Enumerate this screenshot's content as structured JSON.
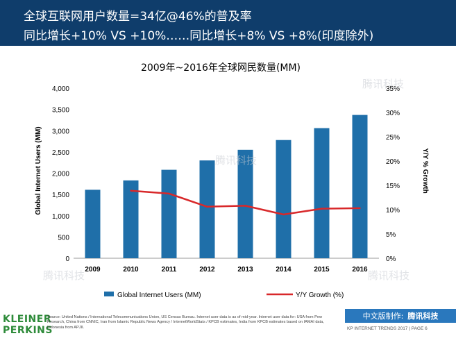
{
  "header": {
    "line1": "全球互联网用户数量=34亿@46%的普及率",
    "line2": "同比增长+10% VS +10%……同比增长+8% VS +8%(印度除外)"
  },
  "chart_data": {
    "type": "bar",
    "title": "2009年~2016年全球网民数量(MM)",
    "categories": [
      "2009",
      "2010",
      "2011",
      "2012",
      "2013",
      "2014",
      "2015",
      "2016"
    ],
    "series": [
      {
        "name": "Global Internet Users (MM)",
        "type": "bar",
        "axis": "left",
        "color": "#1f6fa9",
        "values": [
          1610,
          1830,
          2080,
          2300,
          2550,
          2780,
          3060,
          3370
        ]
      },
      {
        "name": "Y/Y Growth (%)",
        "type": "line",
        "axis": "right",
        "color": "#d8282a",
        "values": [
          null,
          13.9,
          13.3,
          10.6,
          10.8,
          9.0,
          10.2,
          10.3
        ]
      }
    ],
    "y_left": {
      "label": "Global Internet Users (MM)",
      "range": [
        0,
        4000
      ],
      "step": 500,
      "ticks": [
        "0",
        "500",
        "1,000",
        "1,500",
        "2,000",
        "2,500",
        "3,000",
        "3,500",
        "4,000"
      ]
    },
    "y_right": {
      "label": "Y/Y % Growth",
      "range": [
        0,
        35
      ],
      "step": 5,
      "ticks": [
        "0%",
        "5%",
        "10%",
        "15%",
        "20%",
        "25%",
        "30%",
        "35%"
      ]
    },
    "grid": false,
    "legend_position": "bottom"
  },
  "footer": {
    "brand_line1": "KLEINER",
    "brand_line2": "PERKINS",
    "source": "Source: United Nations / International Telecommunications Union, US Census Bureau. Internet user data is as of mid-year. Internet user data for: USA from Pew Research, China from CNNIC, Iran from Islamic Republic News Agency / InternetWorldStats / KPCB estimates, India from KPCB estimates based on IAMAI data, Indonesia from APJII.",
    "cn_label": "中文版制作:",
    "cn_brand": "腾讯科技",
    "kp": "KP INTERNET TRENDS 2017  |  PAGE 6"
  },
  "watermark": "腾讯科技"
}
